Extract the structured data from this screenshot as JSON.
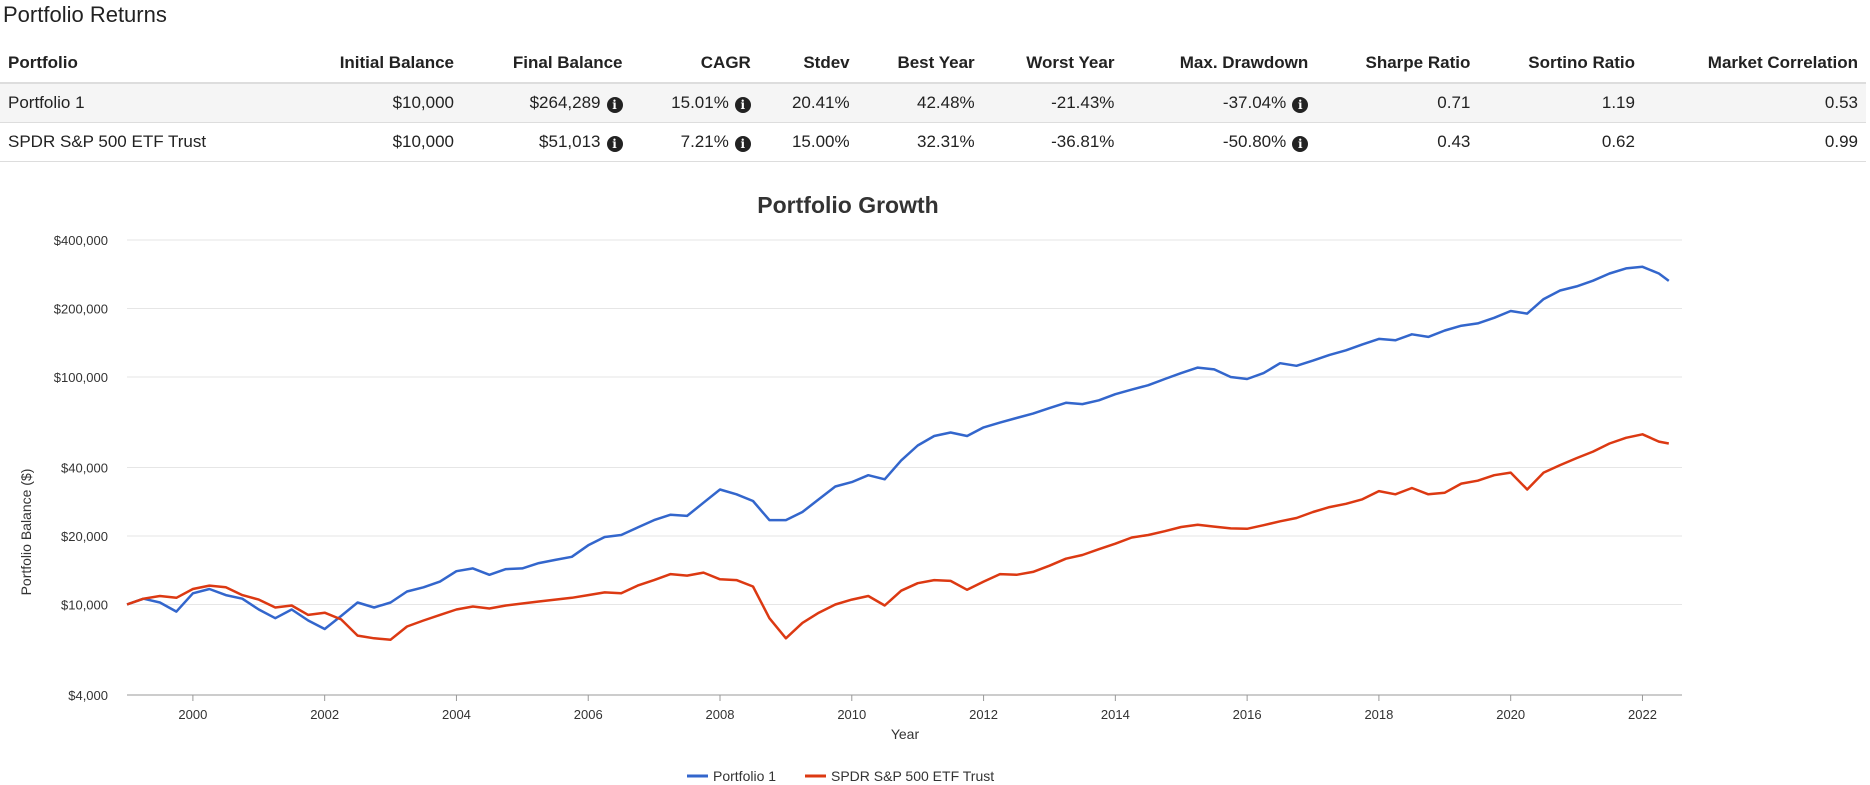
{
  "section_title": "Portfolio Returns",
  "table": {
    "headers": [
      "Portfolio",
      "Initial Balance",
      "Final Balance",
      "CAGR",
      "Stdev",
      "Best Year",
      "Worst Year",
      "Max. Drawdown",
      "Sharpe Ratio",
      "Sortino Ratio",
      "Market Correlation"
    ],
    "rows": [
      {
        "portfolio": "Portfolio 1",
        "initial_balance": "$10,000",
        "final_balance": "$264,289",
        "cagr": "15.01%",
        "stdev": "20.41%",
        "best_year": "42.48%",
        "worst_year": "-21.43%",
        "max_drawdown": "-37.04%",
        "sharpe": "0.71",
        "sortino": "1.19",
        "market_correlation": "0.53"
      },
      {
        "portfolio": "SPDR S&P 500 ETF Trust",
        "initial_balance": "$10,000",
        "final_balance": "$51,013",
        "cagr": "7.21%",
        "stdev": "15.00%",
        "best_year": "32.31%",
        "worst_year": "-36.81%",
        "max_drawdown": "-50.80%",
        "sharpe": "0.43",
        "sortino": "0.62",
        "market_correlation": "0.99"
      }
    ],
    "info_icon": "info-circle-icon"
  },
  "chart_data": {
    "type": "line",
    "title": "Portfolio Growth",
    "xlabel": "Year",
    "ylabel": "Portfolio Balance ($)",
    "y_scale": "log",
    "xlim": [
      1999.0,
      2022.6
    ],
    "ylim": [
      4000,
      400000
    ],
    "x_ticks": [
      2000,
      2002,
      2004,
      2006,
      2008,
      2010,
      2012,
      2014,
      2016,
      2018,
      2020,
      2022
    ],
    "x_tick_labels": [
      "2000",
      "2002",
      "2004",
      "2006",
      "2008",
      "2010",
      "2012",
      "2014",
      "2016",
      "2018",
      "2020",
      "2022"
    ],
    "y_ticks": [
      4000,
      10000,
      20000,
      40000,
      100000,
      200000,
      400000
    ],
    "y_tick_labels": [
      "$4,000",
      "$10,000",
      "$20,000",
      "$40,000",
      "$100,000",
      "$200,000",
      "$400,000"
    ],
    "grid": true,
    "legend_position": "bottom-center",
    "series": [
      {
        "name": "Portfolio 1",
        "color": "#3366cc",
        "points": [
          [
            1999.0,
            10000
          ],
          [
            1999.25,
            10600
          ],
          [
            1999.5,
            10200
          ],
          [
            1999.75,
            9300
          ],
          [
            2000.0,
            11200
          ],
          [
            2000.25,
            11700
          ],
          [
            2000.5,
            11000
          ],
          [
            2000.75,
            10600
          ],
          [
            2001.0,
            9500
          ],
          [
            2001.25,
            8700
          ],
          [
            2001.5,
            9500
          ],
          [
            2001.75,
            8500
          ],
          [
            2002.0,
            7800
          ],
          [
            2002.25,
            8900
          ],
          [
            2002.5,
            10200
          ],
          [
            2002.75,
            9700
          ],
          [
            2003.0,
            10200
          ],
          [
            2003.25,
            11400
          ],
          [
            2003.5,
            11900
          ],
          [
            2003.75,
            12600
          ],
          [
            2004.0,
            14000
          ],
          [
            2004.25,
            14400
          ],
          [
            2004.5,
            13500
          ],
          [
            2004.75,
            14300
          ],
          [
            2005.0,
            14400
          ],
          [
            2005.25,
            15200
          ],
          [
            2005.5,
            15700
          ],
          [
            2005.75,
            16200
          ],
          [
            2006.0,
            18200
          ],
          [
            2006.25,
            19800
          ],
          [
            2006.5,
            20200
          ],
          [
            2006.75,
            21800
          ],
          [
            2007.0,
            23500
          ],
          [
            2007.25,
            24800
          ],
          [
            2007.5,
            24500
          ],
          [
            2007.75,
            28000
          ],
          [
            2008.0,
            32000
          ],
          [
            2008.25,
            30500
          ],
          [
            2008.5,
            28500
          ],
          [
            2008.75,
            23500
          ],
          [
            2009.0,
            23500
          ],
          [
            2009.25,
            25500
          ],
          [
            2009.5,
            29000
          ],
          [
            2009.75,
            33000
          ],
          [
            2010.0,
            34500
          ],
          [
            2010.25,
            37000
          ],
          [
            2010.5,
            35500
          ],
          [
            2010.75,
            43000
          ],
          [
            2011.0,
            50000
          ],
          [
            2011.25,
            55000
          ],
          [
            2011.5,
            57000
          ],
          [
            2011.75,
            55000
          ],
          [
            2012.0,
            60000
          ],
          [
            2012.25,
            63000
          ],
          [
            2012.5,
            66000
          ],
          [
            2012.75,
            69000
          ],
          [
            2013.0,
            73000
          ],
          [
            2013.25,
            77000
          ],
          [
            2013.5,
            76000
          ],
          [
            2013.75,
            79000
          ],
          [
            2014.0,
            84000
          ],
          [
            2014.25,
            88000
          ],
          [
            2014.5,
            92000
          ],
          [
            2014.75,
            98000
          ],
          [
            2015.0,
            104000
          ],
          [
            2015.25,
            110000
          ],
          [
            2015.5,
            108000
          ],
          [
            2015.75,
            100000
          ],
          [
            2016.0,
            98000
          ],
          [
            2016.25,
            104000
          ],
          [
            2016.5,
            115000
          ],
          [
            2016.75,
            112000
          ],
          [
            2017.0,
            118000
          ],
          [
            2017.25,
            125000
          ],
          [
            2017.5,
            131000
          ],
          [
            2017.75,
            139000
          ],
          [
            2018.0,
            147000
          ],
          [
            2018.25,
            145000
          ],
          [
            2018.5,
            154000
          ],
          [
            2018.75,
            150000
          ],
          [
            2019.0,
            160000
          ],
          [
            2019.25,
            168000
          ],
          [
            2019.5,
            172000
          ],
          [
            2019.75,
            182000
          ],
          [
            2020.0,
            195000
          ],
          [
            2020.25,
            190000
          ],
          [
            2020.5,
            220000
          ],
          [
            2020.75,
            240000
          ],
          [
            2021.0,
            250000
          ],
          [
            2021.25,
            265000
          ],
          [
            2021.5,
            285000
          ],
          [
            2021.75,
            300000
          ],
          [
            2022.0,
            305000
          ],
          [
            2022.25,
            285000
          ],
          [
            2022.4,
            264289
          ]
        ]
      },
      {
        "name": "SPDR S&P 500 ETF Trust",
        "color": "#dc3912",
        "points": [
          [
            1999.0,
            10000
          ],
          [
            1999.25,
            10600
          ],
          [
            1999.5,
            10900
          ],
          [
            1999.75,
            10700
          ],
          [
            2000.0,
            11700
          ],
          [
            2000.25,
            12100
          ],
          [
            2000.5,
            11900
          ],
          [
            2000.75,
            11000
          ],
          [
            2001.0,
            10500
          ],
          [
            2001.25,
            9700
          ],
          [
            2001.5,
            9900
          ],
          [
            2001.75,
            9000
          ],
          [
            2002.0,
            9200
          ],
          [
            2002.25,
            8600
          ],
          [
            2002.5,
            7300
          ],
          [
            2002.75,
            7100
          ],
          [
            2003.0,
            7000
          ],
          [
            2003.25,
            8000
          ],
          [
            2003.5,
            8500
          ],
          [
            2003.75,
            9000
          ],
          [
            2004.0,
            9500
          ],
          [
            2004.25,
            9800
          ],
          [
            2004.5,
            9600
          ],
          [
            2004.75,
            9900
          ],
          [
            2005.0,
            10100
          ],
          [
            2005.25,
            10300
          ],
          [
            2005.5,
            10500
          ],
          [
            2005.75,
            10700
          ],
          [
            2006.0,
            11000
          ],
          [
            2006.25,
            11300
          ],
          [
            2006.5,
            11200
          ],
          [
            2006.75,
            12100
          ],
          [
            2007.0,
            12800
          ],
          [
            2007.25,
            13600
          ],
          [
            2007.5,
            13400
          ],
          [
            2007.75,
            13800
          ],
          [
            2008.0,
            12900
          ],
          [
            2008.25,
            12800
          ],
          [
            2008.5,
            12000
          ],
          [
            2008.75,
            8700
          ],
          [
            2009.0,
            7100
          ],
          [
            2009.25,
            8300
          ],
          [
            2009.5,
            9200
          ],
          [
            2009.75,
            10000
          ],
          [
            2010.0,
            10500
          ],
          [
            2010.25,
            10900
          ],
          [
            2010.5,
            9900
          ],
          [
            2010.75,
            11500
          ],
          [
            2011.0,
            12400
          ],
          [
            2011.25,
            12800
          ],
          [
            2011.5,
            12700
          ],
          [
            2011.75,
            11600
          ],
          [
            2012.0,
            12600
          ],
          [
            2012.25,
            13600
          ],
          [
            2012.5,
            13500
          ],
          [
            2012.75,
            13900
          ],
          [
            2013.0,
            14800
          ],
          [
            2013.25,
            15900
          ],
          [
            2013.5,
            16500
          ],
          [
            2013.75,
            17500
          ],
          [
            2014.0,
            18500
          ],
          [
            2014.25,
            19700
          ],
          [
            2014.5,
            20200
          ],
          [
            2014.75,
            21000
          ],
          [
            2015.0,
            21900
          ],
          [
            2015.25,
            22400
          ],
          [
            2015.5,
            22000
          ],
          [
            2015.75,
            21600
          ],
          [
            2016.0,
            21500
          ],
          [
            2016.25,
            22300
          ],
          [
            2016.5,
            23200
          ],
          [
            2016.75,
            24000
          ],
          [
            2017.0,
            25500
          ],
          [
            2017.25,
            26800
          ],
          [
            2017.5,
            27700
          ],
          [
            2017.75,
            29000
          ],
          [
            2018.0,
            31500
          ],
          [
            2018.25,
            30500
          ],
          [
            2018.5,
            32500
          ],
          [
            2018.75,
            30500
          ],
          [
            2019.0,
            31000
          ],
          [
            2019.25,
            34000
          ],
          [
            2019.5,
            35000
          ],
          [
            2019.75,
            37000
          ],
          [
            2020.0,
            38000
          ],
          [
            2020.25,
            32000
          ],
          [
            2020.5,
            38000
          ],
          [
            2020.75,
            41000
          ],
          [
            2021.0,
            44000
          ],
          [
            2021.25,
            47000
          ],
          [
            2021.5,
            51000
          ],
          [
            2021.75,
            54000
          ],
          [
            2022.0,
            56000
          ],
          [
            2022.25,
            52000
          ],
          [
            2022.4,
            51013
          ]
        ]
      }
    ]
  }
}
